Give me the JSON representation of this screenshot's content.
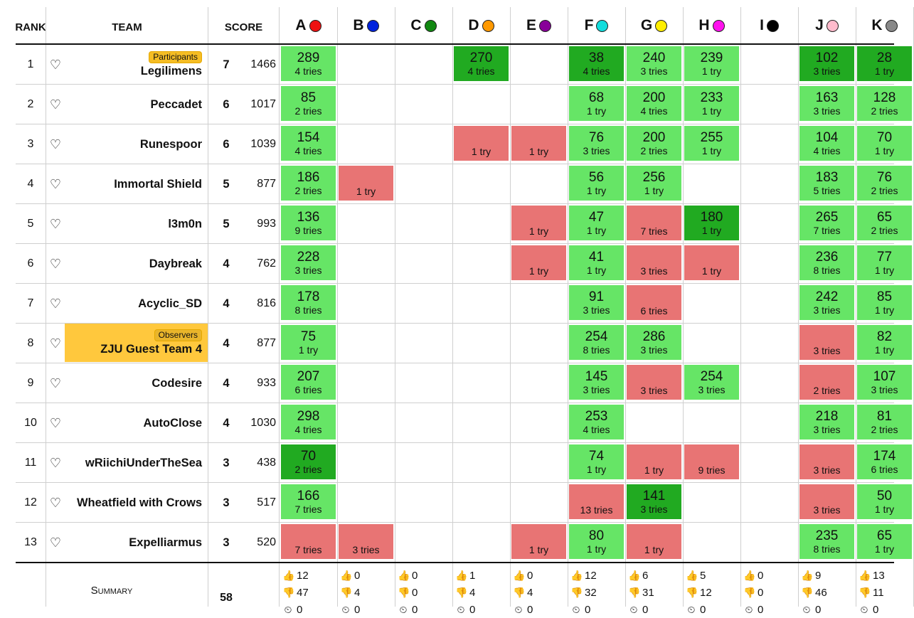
{
  "headers": {
    "rank": "RANK",
    "team": "TEAM",
    "score": "SCORE"
  },
  "problems": [
    {
      "letter": "A",
      "color": "#ee1111"
    },
    {
      "letter": "B",
      "color": "#0022dd"
    },
    {
      "letter": "C",
      "color": "#118811"
    },
    {
      "letter": "D",
      "color": "#ff9900"
    },
    {
      "letter": "E",
      "color": "#880099"
    },
    {
      "letter": "F",
      "color": "#11dddd"
    },
    {
      "letter": "G",
      "color": "#ffee00"
    },
    {
      "letter": "H",
      "color": "#ff11ee"
    },
    {
      "letter": "I",
      "color": "#000000"
    },
    {
      "letter": "J",
      "color": "#ffbbcc"
    },
    {
      "letter": "K",
      "color": "#888888"
    }
  ],
  "rows": [
    {
      "rank": "1",
      "team": "Legilimens",
      "badge": "Participants",
      "observer": false,
      "solved": "7",
      "penalty": "1466",
      "cells": [
        [
          "ac",
          "289",
          "4 tries"
        ],
        null,
        null,
        [
          "fb",
          "270",
          "4 tries"
        ],
        null,
        [
          "fb",
          "38",
          "4 tries"
        ],
        [
          "ac",
          "240",
          "3 tries"
        ],
        [
          "ac",
          "239",
          "1 try"
        ],
        null,
        [
          "fb",
          "102",
          "3 tries"
        ],
        [
          "fb",
          "28",
          "1 try"
        ]
      ]
    },
    {
      "rank": "2",
      "team": "Peccadet",
      "badge": "",
      "observer": false,
      "solved": "6",
      "penalty": "1017",
      "cells": [
        [
          "ac",
          "85",
          "2 tries"
        ],
        null,
        null,
        null,
        null,
        [
          "ac",
          "68",
          "1 try"
        ],
        [
          "ac",
          "200",
          "4 tries"
        ],
        [
          "ac",
          "233",
          "1 try"
        ],
        null,
        [
          "ac",
          "163",
          "3 tries"
        ],
        [
          "ac",
          "128",
          "2 tries"
        ]
      ]
    },
    {
      "rank": "3",
      "team": "Runespoor",
      "badge": "",
      "observer": false,
      "solved": "6",
      "penalty": "1039",
      "cells": [
        [
          "ac",
          "154",
          "4 tries"
        ],
        null,
        null,
        [
          "wa",
          "",
          "1 try"
        ],
        [
          "wa",
          "",
          "1 try"
        ],
        [
          "ac",
          "76",
          "3 tries"
        ],
        [
          "ac",
          "200",
          "2 tries"
        ],
        [
          "ac",
          "255",
          "1 try"
        ],
        null,
        [
          "ac",
          "104",
          "4 tries"
        ],
        [
          "ac",
          "70",
          "1 try"
        ]
      ]
    },
    {
      "rank": "4",
      "team": "Immortal Shield",
      "badge": "",
      "observer": false,
      "solved": "5",
      "penalty": "877",
      "cells": [
        [
          "ac",
          "186",
          "2 tries"
        ],
        [
          "wa",
          "",
          "1 try"
        ],
        null,
        null,
        null,
        [
          "ac",
          "56",
          "1 try"
        ],
        [
          "ac",
          "256",
          "1 try"
        ],
        null,
        null,
        [
          "ac",
          "183",
          "5 tries"
        ],
        [
          "ac",
          "76",
          "2 tries"
        ]
      ]
    },
    {
      "rank": "5",
      "team": "l3m0n",
      "badge": "",
      "observer": false,
      "solved": "5",
      "penalty": "993",
      "cells": [
        [
          "ac",
          "136",
          "9 tries"
        ],
        null,
        null,
        null,
        [
          "wa",
          "",
          "1 try"
        ],
        [
          "ac",
          "47",
          "1 try"
        ],
        [
          "wa",
          "",
          "7 tries"
        ],
        [
          "fb",
          "180",
          "1 try"
        ],
        null,
        [
          "ac",
          "265",
          "7 tries"
        ],
        [
          "ac",
          "65",
          "2 tries"
        ]
      ]
    },
    {
      "rank": "6",
      "team": "Daybreak",
      "badge": "",
      "observer": false,
      "solved": "4",
      "penalty": "762",
      "cells": [
        [
          "ac",
          "228",
          "3 tries"
        ],
        null,
        null,
        null,
        [
          "wa",
          "",
          "1 try"
        ],
        [
          "ac",
          "41",
          "1 try"
        ],
        [
          "wa",
          "",
          "3 tries"
        ],
        [
          "wa",
          "",
          "1 try"
        ],
        null,
        [
          "ac",
          "236",
          "8 tries"
        ],
        [
          "ac",
          "77",
          "1 try"
        ]
      ]
    },
    {
      "rank": "7",
      "team": "Acyclic_SD",
      "badge": "",
      "observer": false,
      "solved": "4",
      "penalty": "816",
      "cells": [
        [
          "ac",
          "178",
          "8 tries"
        ],
        null,
        null,
        null,
        null,
        [
          "ac",
          "91",
          "3 tries"
        ],
        [
          "wa",
          "",
          "6 tries"
        ],
        null,
        null,
        [
          "ac",
          "242",
          "3 tries"
        ],
        [
          "ac",
          "85",
          "1 try"
        ]
      ]
    },
    {
      "rank": "8",
      "team": "ZJU Guest Team 4",
      "badge": "Observers",
      "observer": true,
      "solved": "4",
      "penalty": "877",
      "cells": [
        [
          "ac",
          "75",
          "1 try"
        ],
        null,
        null,
        null,
        null,
        [
          "ac",
          "254",
          "8 tries"
        ],
        [
          "ac",
          "286",
          "3 tries"
        ],
        null,
        null,
        [
          "wa",
          "",
          "3 tries"
        ],
        [
          "ac",
          "82",
          "1 try"
        ]
      ]
    },
    {
      "rank": "9",
      "team": "Codesire",
      "badge": "",
      "observer": false,
      "solved": "4",
      "penalty": "933",
      "cells": [
        [
          "ac",
          "207",
          "6 tries"
        ],
        null,
        null,
        null,
        null,
        [
          "ac",
          "145",
          "3 tries"
        ],
        [
          "wa",
          "",
          "3 tries"
        ],
        [
          "ac",
          "254",
          "3 tries"
        ],
        null,
        [
          "wa",
          "",
          "2 tries"
        ],
        [
          "ac",
          "107",
          "3 tries"
        ]
      ]
    },
    {
      "rank": "10",
      "team": "AutoClose",
      "badge": "",
      "observer": false,
      "solved": "4",
      "penalty": "1030",
      "cells": [
        [
          "ac",
          "298",
          "4 tries"
        ],
        null,
        null,
        null,
        null,
        [
          "ac",
          "253",
          "4 tries"
        ],
        null,
        null,
        null,
        [
          "ac",
          "218",
          "3 tries"
        ],
        [
          "ac",
          "81",
          "2 tries"
        ]
      ]
    },
    {
      "rank": "11",
      "team": "wRiichiUnderTheSea",
      "badge": "",
      "observer": false,
      "solved": "3",
      "penalty": "438",
      "cells": [
        [
          "fb",
          "70",
          "2 tries"
        ],
        null,
        null,
        null,
        null,
        [
          "ac",
          "74",
          "1 try"
        ],
        [
          "wa",
          "",
          "1 try"
        ],
        [
          "wa",
          "",
          "9 tries"
        ],
        null,
        [
          "wa",
          "",
          "3 tries"
        ],
        [
          "ac",
          "174",
          "6 tries"
        ]
      ]
    },
    {
      "rank": "12",
      "team": "Wheatfield with Crows",
      "badge": "",
      "observer": false,
      "solved": "3",
      "penalty": "517",
      "cells": [
        [
          "ac",
          "166",
          "7 tries"
        ],
        null,
        null,
        null,
        null,
        [
          "wa",
          "",
          "13 tries"
        ],
        [
          "fb",
          "141",
          "3 tries"
        ],
        null,
        null,
        [
          "wa",
          "",
          "3 tries"
        ],
        [
          "ac",
          "50",
          "1 try"
        ]
      ]
    },
    {
      "rank": "13",
      "team": "Expelliarmus",
      "badge": "",
      "observer": false,
      "solved": "3",
      "penalty": "520",
      "cells": [
        [
          "wa",
          "",
          "7 tries"
        ],
        [
          "wa",
          "",
          "3 tries"
        ],
        null,
        null,
        [
          "wa",
          "",
          "1 try"
        ],
        [
          "ac",
          "80",
          "1 try"
        ],
        [
          "wa",
          "",
          "1 try"
        ],
        null,
        null,
        [
          "ac",
          "235",
          "8 tries"
        ],
        [
          "ac",
          "65",
          "1 try"
        ]
      ]
    }
  ],
  "summary": {
    "label": "Summary",
    "solved": "58",
    "accepted": [
      "12",
      "0",
      "0",
      "1",
      "0",
      "12",
      "6",
      "5",
      "0",
      "9",
      "13"
    ],
    "rejected": [
      "47",
      "4",
      "0",
      "4",
      "4",
      "32",
      "31",
      "12",
      "0",
      "46",
      "11"
    ],
    "pending": [
      "0",
      "0",
      "0",
      "0",
      "0",
      "0",
      "0",
      "0",
      "0",
      "0",
      "0"
    ]
  }
}
